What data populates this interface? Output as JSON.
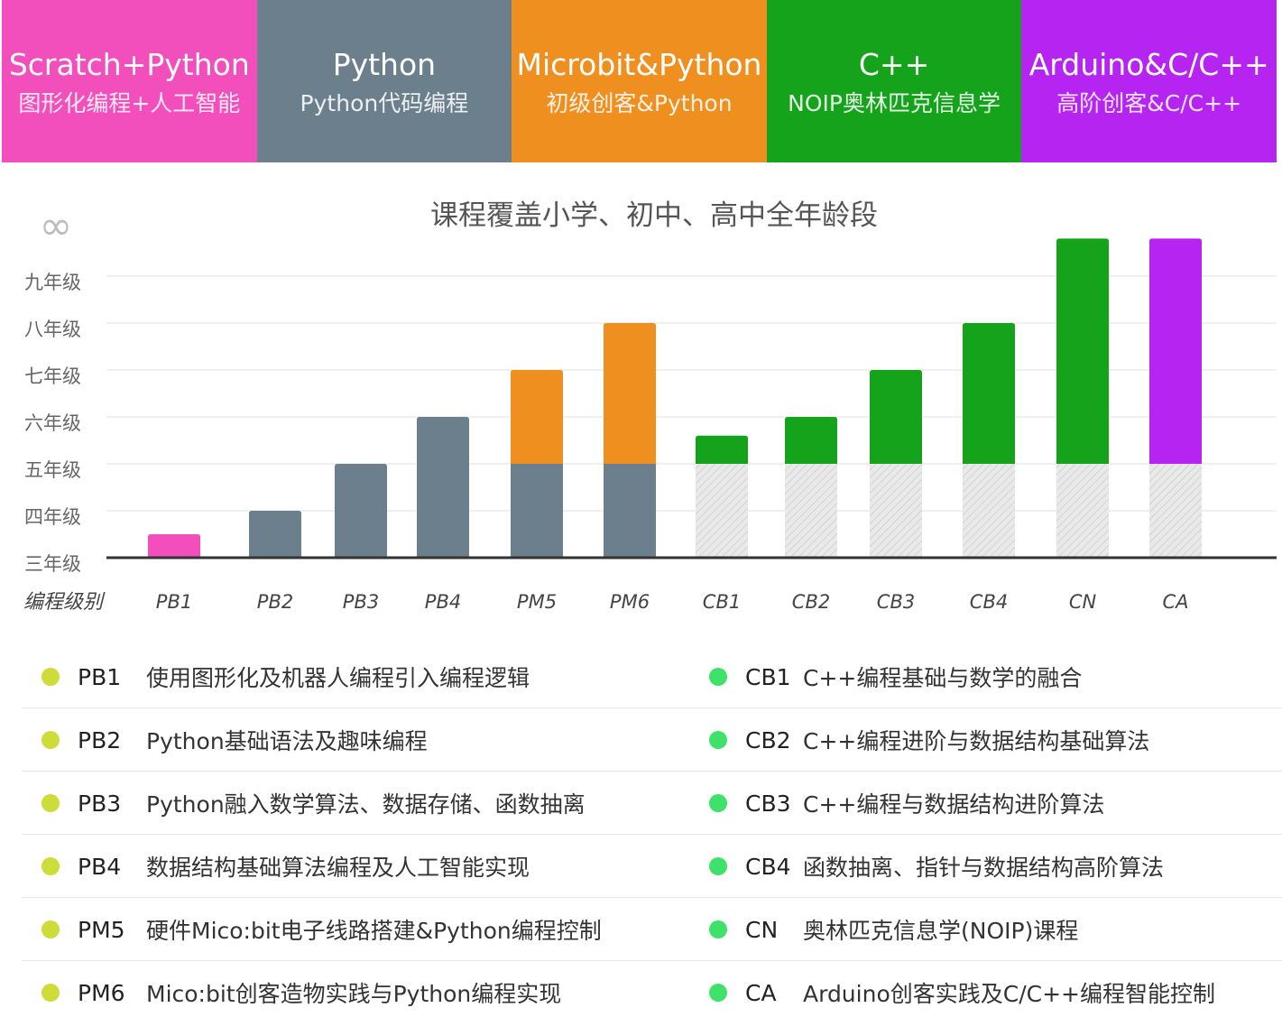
{
  "tabs": [
    {
      "title": "Scratch+Python",
      "subtitle": "图形化编程+人工智能",
      "color": "#f24fbd"
    },
    {
      "title": "Python",
      "subtitle": "Python代码编程",
      "color": "#6b7f8d"
    },
    {
      "title": "Microbit&Python",
      "subtitle": "初级创客&Python",
      "color": "#ef8f1f"
    },
    {
      "title": "C++",
      "subtitle": "NOIP奥林匹克信息学",
      "color": "#16a31c"
    },
    {
      "title": "Arduino&C/C++",
      "subtitle": "高阶创客&C/C++",
      "color": "#b624f2"
    }
  ],
  "chart_data": {
    "type": "bar",
    "title": "课程覆盖小学、初中、高中全年龄段",
    "infinity_symbol": "∞",
    "xlabel": "编程级别",
    "ylabel": "",
    "y_ticks": [
      "三年级",
      "四年级",
      "五年级",
      "六年级",
      "七年级",
      "八年级",
      "九年级"
    ],
    "ylim": [
      3,
      10
    ],
    "grid": true,
    "categories": [
      "PB1",
      "PB2",
      "PB3",
      "PB4",
      "PM5",
      "PM6",
      "CB1",
      "CB2",
      "CB3",
      "CB4",
      "CN",
      "CA"
    ],
    "bars": [
      {
        "category": "PB1",
        "segments": [
          {
            "from": 3,
            "to": 3.5,
            "color": "#f24fbd"
          }
        ]
      },
      {
        "category": "PB2",
        "segments": [
          {
            "from": 3,
            "to": 4,
            "color": "#6b7f8d"
          }
        ]
      },
      {
        "category": "PB3",
        "segments": [
          {
            "from": 3,
            "to": 5,
            "color": "#6b7f8d"
          }
        ]
      },
      {
        "category": "PB4",
        "segments": [
          {
            "from": 3,
            "to": 6,
            "color": "#6b7f8d"
          }
        ]
      },
      {
        "category": "PM5",
        "segments": [
          {
            "from": 3,
            "to": 5,
            "color": "#6b7f8d"
          },
          {
            "from": 5,
            "to": 7,
            "color": "#ef8f1f"
          }
        ]
      },
      {
        "category": "PM6",
        "segments": [
          {
            "from": 3,
            "to": 5,
            "color": "#6b7f8d"
          },
          {
            "from": 5,
            "to": 8,
            "color": "#ef8f1f"
          }
        ]
      },
      {
        "category": "CB1",
        "segments": [
          {
            "from": 3,
            "to": 5,
            "pattern": "hatch"
          },
          {
            "from": 5,
            "to": 5.6,
            "color": "#16a31c"
          }
        ]
      },
      {
        "category": "CB2",
        "segments": [
          {
            "from": 3,
            "to": 5,
            "pattern": "hatch"
          },
          {
            "from": 5,
            "to": 6,
            "color": "#16a31c"
          }
        ]
      },
      {
        "category": "CB3",
        "segments": [
          {
            "from": 3,
            "to": 5,
            "pattern": "hatch"
          },
          {
            "from": 5,
            "to": 7,
            "color": "#16a31c"
          }
        ]
      },
      {
        "category": "CB4",
        "segments": [
          {
            "from": 3,
            "to": 5,
            "pattern": "hatch"
          },
          {
            "from": 5,
            "to": 8,
            "color": "#16a31c"
          }
        ]
      },
      {
        "category": "CN",
        "segments": [
          {
            "from": 3,
            "to": 5,
            "pattern": "hatch"
          },
          {
            "from": 5,
            "to": 9.8,
            "color": "#16a31c"
          }
        ]
      },
      {
        "category": "CA",
        "segments": [
          {
            "from": 3,
            "to": 5,
            "pattern": "hatch"
          },
          {
            "from": 5,
            "to": 9.8,
            "color": "#b624f2"
          }
        ]
      }
    ]
  },
  "legend": {
    "left": [
      {
        "code": "PB1",
        "desc": "使用图形化及机器人编程引入编程逻辑",
        "color": "#cddc39"
      },
      {
        "code": "PB2",
        "desc": "Python基础语法及趣味编程",
        "color": "#cddc39"
      },
      {
        "code": "PB3",
        "desc": "Python融入数学算法、数据存储、函数抽离",
        "color": "#cddc39"
      },
      {
        "code": "PB4",
        "desc": "数据结构基础算法编程及人工智能实现",
        "color": "#cddc39"
      },
      {
        "code": "PM5",
        "desc": "硬件Mico:bit电子线路搭建&Python编程控制",
        "color": "#cddc39"
      },
      {
        "code": "PM6",
        "desc": "Mico:bit创客造物实践与Python编程实现",
        "color": "#cddc39"
      }
    ],
    "right": [
      {
        "code": "CB1",
        "desc": "C++编程基础与数学的融合",
        "color": "#3ee26a"
      },
      {
        "code": "CB2",
        "desc": "C++编程进阶与数据结构基础算法",
        "color": "#3ee26a"
      },
      {
        "code": "CB3",
        "desc": "C++编程与数据结构进阶算法",
        "color": "#3ee26a"
      },
      {
        "code": "CB4",
        "desc": "函数抽离、指针与数据结构高阶算法",
        "color": "#3ee26a"
      },
      {
        "code": "CN",
        "desc": "奥林匹克信息学(NOIP)课程",
        "color": "#3ee26a"
      },
      {
        "code": "CA",
        "desc": "Arduino创客实践及C/C++编程智能控制",
        "color": "#3ee26a"
      }
    ]
  }
}
